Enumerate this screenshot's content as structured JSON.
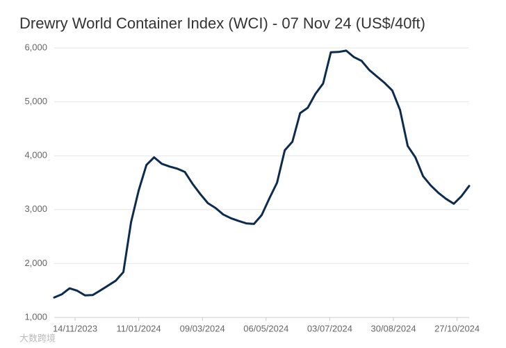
{
  "chart_data": {
    "type": "line",
    "title": "Drewry World Container Index (WCI) - 07 Nov 24 (US$/40ft)",
    "watermark": "大数跨境",
    "x": [
      "26/10/2023",
      "02/11/2023",
      "09/11/2023",
      "16/11/2023",
      "23/11/2023",
      "30/11/2023",
      "07/12/2023",
      "14/12/2023",
      "21/12/2023",
      "28/12/2023",
      "04/01/2024",
      "11/01/2024",
      "18/01/2024",
      "25/01/2024",
      "01/02/2024",
      "08/02/2024",
      "15/02/2024",
      "22/02/2024",
      "29/02/2024",
      "07/03/2024",
      "14/03/2024",
      "21/03/2024",
      "28/03/2024",
      "04/04/2024",
      "11/04/2024",
      "18/04/2024",
      "25/04/2024",
      "02/05/2024",
      "09/05/2024",
      "16/05/2024",
      "23/05/2024",
      "30/05/2024",
      "06/06/2024",
      "13/06/2024",
      "20/06/2024",
      "27/06/2024",
      "04/07/2024",
      "11/07/2024",
      "18/07/2024",
      "25/07/2024",
      "01/08/2024",
      "08/08/2024",
      "15/08/2024",
      "22/08/2024",
      "29/08/2024",
      "05/09/2024",
      "12/09/2024",
      "19/09/2024",
      "26/09/2024",
      "03/10/2024",
      "10/10/2024",
      "17/10/2024",
      "24/10/2024",
      "31/10/2024",
      "07/11/2024"
    ],
    "series": [
      {
        "name": "WCI",
        "color": "#0d2b4e",
        "values": [
          1370,
          1430,
          1540,
          1495,
          1410,
          1415,
          1500,
          1590,
          1680,
          1840,
          2770,
          3360,
          3830,
          3970,
          3850,
          3800,
          3760,
          3700,
          3480,
          3290,
          3120,
          3030,
          2910,
          2840,
          2790,
          2745,
          2735,
          2900,
          3210,
          3500,
          4100,
          4260,
          4790,
          4890,
          5150,
          5340,
          5920,
          5925,
          5950,
          5830,
          5760,
          5590,
          5470,
          5350,
          5210,
          4850,
          4180,
          3970,
          3620,
          3450,
          3310,
          3200,
          3110,
          3250,
          3440
        ]
      }
    ],
    "xlim": [
      "26/10/2023",
      "07/11/2024"
    ],
    "xticks": [
      "14/11/2023",
      "11/01/2024",
      "09/03/2024",
      "06/05/2024",
      "03/07/2024",
      "30/08/2024",
      "27/10/2024"
    ],
    "ylim": [
      1000,
      6000
    ],
    "yticks": [
      {
        "value": 1000,
        "label": "1,000"
      },
      {
        "value": 2000,
        "label": "2,000"
      },
      {
        "value": 3000,
        "label": "3,000"
      },
      {
        "value": 4000,
        "label": "4,000"
      },
      {
        "value": 5000,
        "label": "5,000"
      },
      {
        "value": 6000,
        "label": "6,000"
      }
    ],
    "grid": true
  }
}
